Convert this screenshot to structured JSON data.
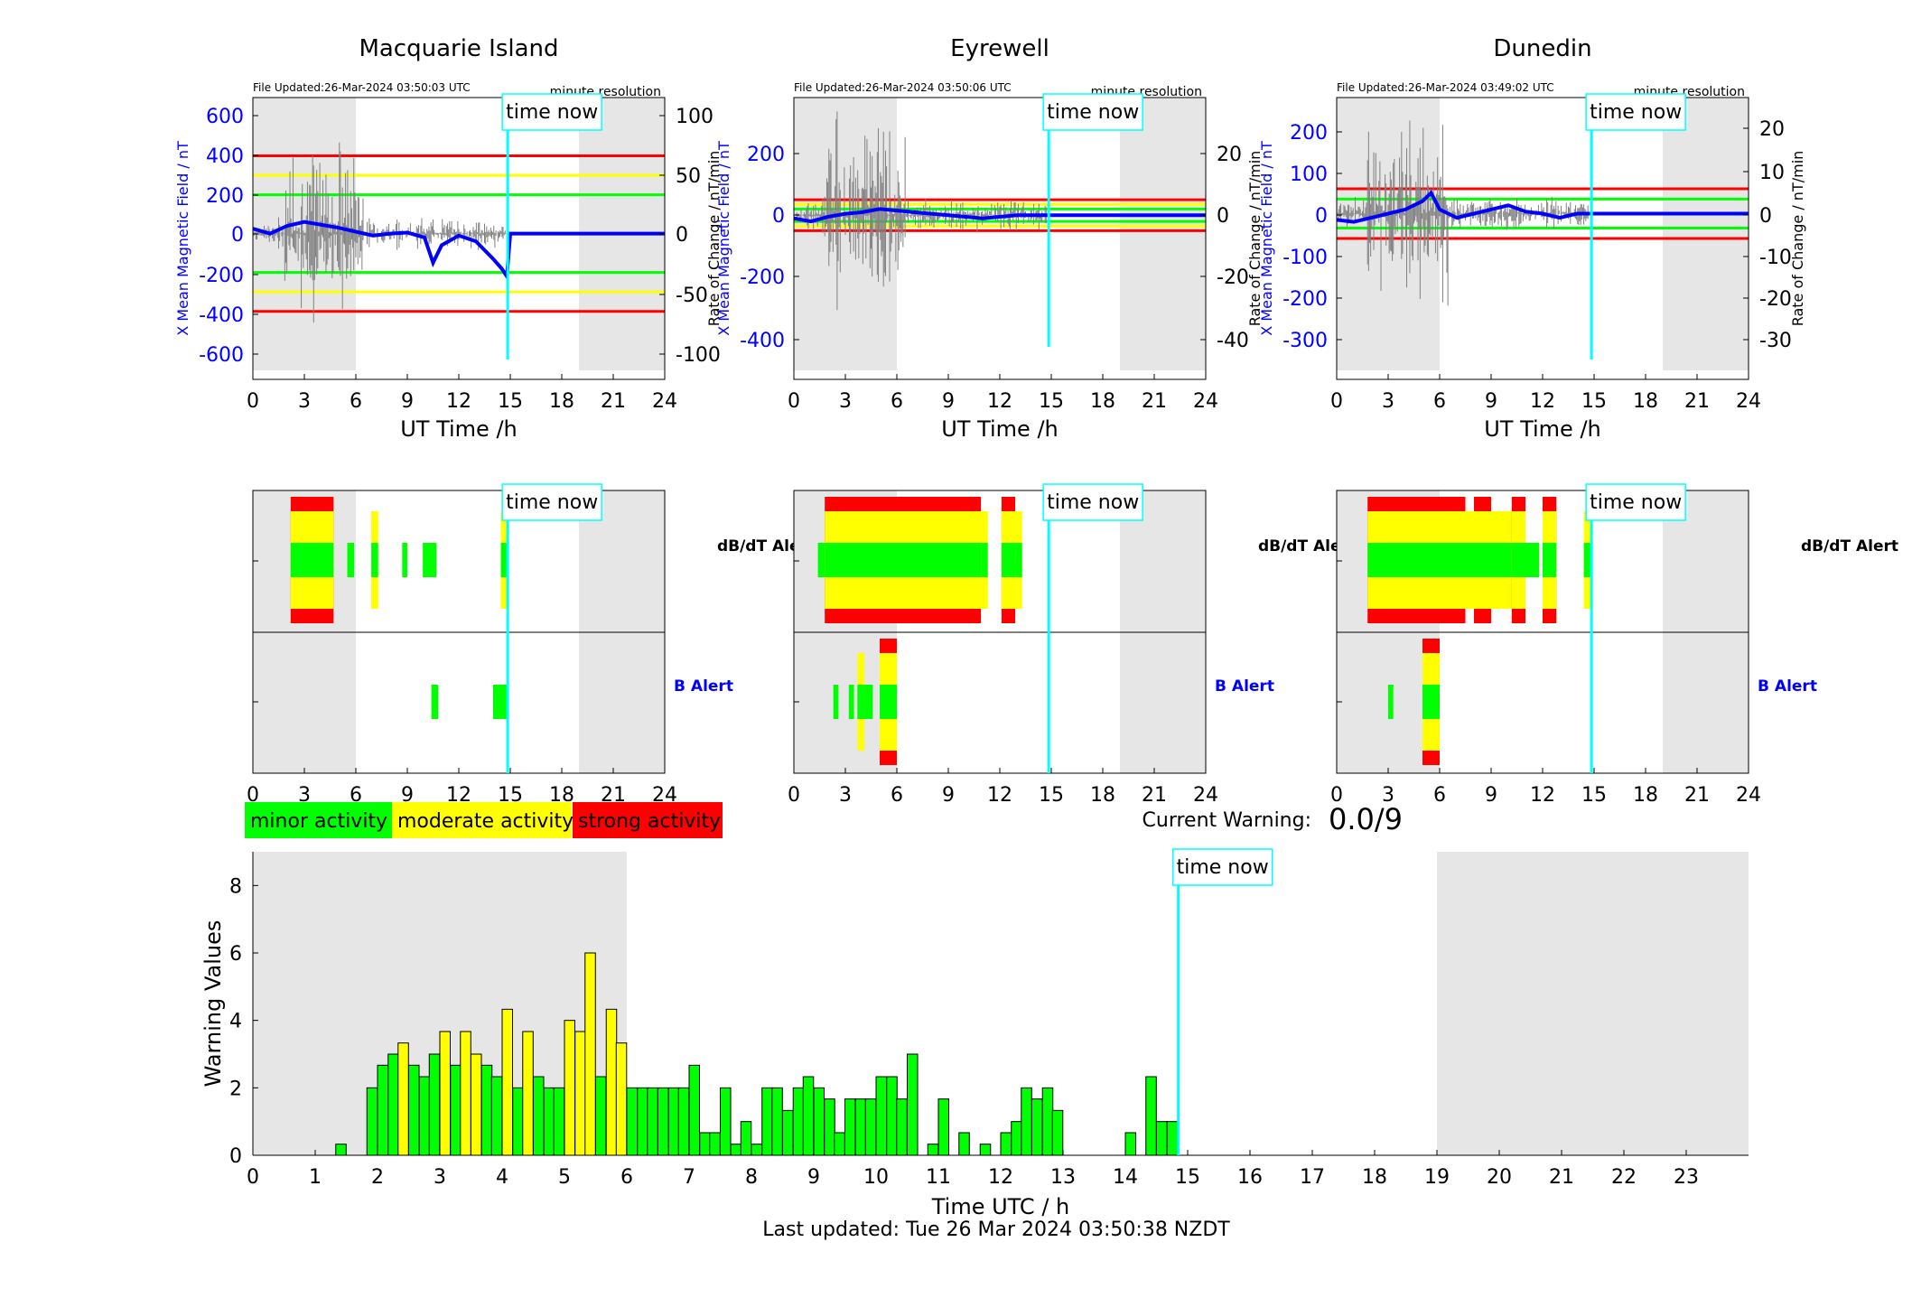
{
  "colors": {
    "minor": "#00ff00",
    "moderate": "#ffff00",
    "strong": "#ff0000",
    "field_trace": "#0000ff",
    "rate_trace": "#808080",
    "time_now": "#00ffff",
    "night_shade": "#e6e6e6",
    "b_alert_label": "#0000ff"
  },
  "stations": [
    {
      "name": "Macquarie Island",
      "file_updated": "File Updated:26-Mar-2024 03:50:03 UTC",
      "resolution": "minute resolution",
      "time_now_label": "time now",
      "ylabel_left": "X Mean Magnetic Field / nT",
      "ylabel_right": "Rate of Change / nT/min",
      "left_ticks": [
        "600",
        "400",
        "200",
        "0",
        "-200",
        "-400",
        "-600"
      ],
      "right_ticks": [
        "100",
        "50",
        "0",
        "-50",
        "-100"
      ],
      "xlabel": "UT Time /h",
      "x_ticks": [
        "0",
        "3",
        "6",
        "9",
        "12",
        "15",
        "18",
        "21",
        "24"
      ]
    },
    {
      "name": "Eyrewell",
      "file_updated": "File Updated:26-Mar-2024 03:50:06 UTC",
      "resolution": "minute resolution",
      "time_now_label": "time now",
      "ylabel_left": "X Mean Magnetic Field / nT",
      "ylabel_right": "Rate of Change / nT/min",
      "left_ticks": [
        "200",
        "0",
        "-200",
        "-400"
      ],
      "right_ticks": [
        "20",
        "0",
        "-20",
        "-40"
      ],
      "xlabel": "UT Time /h",
      "x_ticks": [
        "0",
        "3",
        "6",
        "9",
        "12",
        "15",
        "18",
        "21",
        "24"
      ]
    },
    {
      "name": "Dunedin",
      "file_updated": "File Updated:26-Mar-2024 03:49:02 UTC",
      "resolution": "minute resolution",
      "time_now_label": "time now",
      "ylabel_left": "X Mean Magnetic Field / nT",
      "ylabel_right": "Rate of Change / nT/min",
      "left_ticks": [
        "200",
        "100",
        "0",
        "-100",
        "-200",
        "-300"
      ],
      "right_ticks": [
        "20",
        "10",
        "0",
        "-10",
        "-20",
        "-30"
      ],
      "xlabel": "UT Time /h",
      "x_ticks": [
        "0",
        "3",
        "6",
        "9",
        "12",
        "15",
        "18",
        "21",
        "24"
      ]
    }
  ],
  "alerts": {
    "dbdt_label": "dB/dT Alert",
    "b_label": "B Alert",
    "time_now_label": "time now"
  },
  "legend": {
    "minor": "minor activity",
    "moderate": "moderate activity",
    "strong": "strong activity"
  },
  "current_warning": {
    "label": "Current Warning:",
    "value": "0.0/9"
  },
  "footer": {
    "last_updated": "Last updated: Tue 26 Mar 2024 03:50:38 NZDT"
  },
  "chart_data": [
    {
      "type": "line",
      "station": "Macquarie Island",
      "x_unit": "UT hours",
      "xlim": [
        0,
        24
      ],
      "ylim_field": [
        -750,
        700
      ],
      "ylim_rate": [
        -125,
        116.7
      ],
      "time_now": 14.85,
      "night_shade_hours": [
        [
          0,
          6
        ],
        [
          19,
          24
        ]
      ],
      "field_thresholds": [
        {
          "level": 400,
          "color": "strong"
        },
        {
          "level": 300,
          "color": "moderate"
        },
        {
          "level": 200,
          "color": "minor"
        },
        {
          "level": -200,
          "color": "minor"
        },
        {
          "level": -300,
          "color": "moderate"
        },
        {
          "level": -400,
          "color": "strong"
        }
      ],
      "field_series": {
        "x": [
          0,
          1,
          2,
          3,
          4,
          5,
          6,
          7,
          8,
          9,
          10,
          10.5,
          11,
          12,
          13,
          14,
          14.5,
          14.8,
          15,
          24
        ],
        "y": [
          25,
          0,
          40,
          60,
          45,
          30,
          10,
          -10,
          0,
          5,
          -20,
          -150,
          -60,
          -10,
          -40,
          -130,
          -180,
          -220,
          0,
          0
        ]
      }
    },
    {
      "type": "line",
      "station": "Eyrewell",
      "x_unit": "UT hours",
      "xlim": [
        0,
        24
      ],
      "ylim_field": [
        -530,
        380
      ],
      "ylim_rate": [
        -53,
        38
      ],
      "time_now": 14.85,
      "night_shade_hours": [
        [
          0,
          6
        ],
        [
          19,
          24
        ]
      ],
      "field_thresholds": [
        {
          "level": 50,
          "color": "strong"
        },
        {
          "level": 35,
          "color": "moderate"
        },
        {
          "level": 20,
          "color": "minor"
        },
        {
          "level": -20,
          "color": "minor"
        },
        {
          "level": -35,
          "color": "moderate"
        },
        {
          "level": -50,
          "color": "strong"
        }
      ],
      "field_series": {
        "x": [
          0,
          1,
          2,
          3,
          4,
          5,
          6,
          7,
          8,
          9,
          10,
          11,
          12,
          13,
          24
        ],
        "y": [
          -10,
          -20,
          -5,
          5,
          10,
          20,
          15,
          10,
          5,
          0,
          -5,
          -10,
          -5,
          0,
          0
        ]
      }
    },
    {
      "type": "line",
      "station": "Dunedin",
      "x_unit": "UT hours",
      "xlim": [
        0,
        24
      ],
      "ylim_field": [
        -400,
        280
      ],
      "ylim_rate": [
        -40,
        28
      ],
      "time_now": 14.85,
      "night_shade_hours": [
        [
          0,
          6
        ],
        [
          19,
          24
        ]
      ],
      "field_thresholds": [
        {
          "level": 60,
          "color": "strong"
        },
        {
          "level": 35,
          "color": "minor"
        },
        {
          "level": -35,
          "color": "minor"
        },
        {
          "level": -60,
          "color": "strong"
        }
      ],
      "field_series": {
        "x": [
          0,
          1,
          2,
          3,
          4,
          5,
          5.5,
          6,
          7,
          8,
          9,
          10,
          11,
          12,
          13,
          14,
          24
        ],
        "y": [
          -15,
          -20,
          -10,
          0,
          10,
          30,
          50,
          10,
          -10,
          0,
          10,
          20,
          5,
          0,
          -10,
          0,
          0
        ]
      }
    },
    {
      "type": "bar",
      "title": "",
      "xlabel": "Time UTC / h",
      "ylabel": "Warning Values",
      "xlim": [
        0,
        24
      ],
      "ylim": [
        0,
        9
      ],
      "x_ticks": [
        "0",
        "1",
        "2",
        "3",
        "4",
        "5",
        "6",
        "7",
        "8",
        "9",
        "10",
        "11",
        "12",
        "13",
        "14",
        "15",
        "16",
        "17",
        "18",
        "19",
        "20",
        "21",
        "22",
        "23"
      ],
      "y_ticks": [
        "0",
        "2",
        "4",
        "6",
        "8"
      ],
      "time_now": 14.85,
      "time_now_label": "time now",
      "night_shade_hours": [
        [
          0,
          6
        ],
        [
          19,
          24
        ]
      ],
      "bar_width_hours": 0.1667,
      "bars": [
        {
          "t": 1.33,
          "v": 0.33,
          "c": "minor"
        },
        {
          "t": 1.83,
          "v": 2.0,
          "c": "minor"
        },
        {
          "t": 2.0,
          "v": 2.67,
          "c": "minor"
        },
        {
          "t": 2.17,
          "v": 3.0,
          "c": "minor"
        },
        {
          "t": 2.33,
          "v": 3.33,
          "c": "moderate"
        },
        {
          "t": 2.5,
          "v": 2.67,
          "c": "minor"
        },
        {
          "t": 2.67,
          "v": 2.33,
          "c": "minor"
        },
        {
          "t": 2.83,
          "v": 3.0,
          "c": "minor"
        },
        {
          "t": 3.0,
          "v": 3.67,
          "c": "moderate"
        },
        {
          "t": 3.17,
          "v": 2.67,
          "c": "minor"
        },
        {
          "t": 3.33,
          "v": 3.67,
          "c": "moderate"
        },
        {
          "t": 3.5,
          "v": 3.0,
          "c": "moderate"
        },
        {
          "t": 3.67,
          "v": 2.67,
          "c": "minor"
        },
        {
          "t": 3.83,
          "v": 2.33,
          "c": "minor"
        },
        {
          "t": 4.0,
          "v": 4.33,
          "c": "moderate"
        },
        {
          "t": 4.17,
          "v": 2.0,
          "c": "minor"
        },
        {
          "t": 4.33,
          "v": 3.67,
          "c": "moderate"
        },
        {
          "t": 4.5,
          "v": 2.33,
          "c": "minor"
        },
        {
          "t": 4.67,
          "v": 2.0,
          "c": "minor"
        },
        {
          "t": 4.83,
          "v": 2.0,
          "c": "minor"
        },
        {
          "t": 5.0,
          "v": 4.0,
          "c": "moderate"
        },
        {
          "t": 5.17,
          "v": 3.67,
          "c": "moderate"
        },
        {
          "t": 5.33,
          "v": 6.0,
          "c": "moderate"
        },
        {
          "t": 5.5,
          "v": 2.33,
          "c": "minor"
        },
        {
          "t": 5.67,
          "v": 4.33,
          "c": "moderate"
        },
        {
          "t": 5.83,
          "v": 3.33,
          "c": "moderate"
        },
        {
          "t": 6.0,
          "v": 2.0,
          "c": "minor"
        },
        {
          "t": 6.17,
          "v": 2.0,
          "c": "minor"
        },
        {
          "t": 6.33,
          "v": 2.0,
          "c": "minor"
        },
        {
          "t": 6.5,
          "v": 2.0,
          "c": "minor"
        },
        {
          "t": 6.67,
          "v": 2.0,
          "c": "minor"
        },
        {
          "t": 6.83,
          "v": 2.0,
          "c": "minor"
        },
        {
          "t": 7.0,
          "v": 2.67,
          "c": "minor"
        },
        {
          "t": 7.17,
          "v": 0.67,
          "c": "minor"
        },
        {
          "t": 7.33,
          "v": 0.67,
          "c": "minor"
        },
        {
          "t": 7.5,
          "v": 2.0,
          "c": "minor"
        },
        {
          "t": 7.67,
          "v": 0.33,
          "c": "minor"
        },
        {
          "t": 7.83,
          "v": 1.0,
          "c": "minor"
        },
        {
          "t": 8.0,
          "v": 0.33,
          "c": "minor"
        },
        {
          "t": 8.17,
          "v": 2.0,
          "c": "minor"
        },
        {
          "t": 8.33,
          "v": 2.0,
          "c": "minor"
        },
        {
          "t": 8.5,
          "v": 1.33,
          "c": "minor"
        },
        {
          "t": 8.67,
          "v": 2.0,
          "c": "minor"
        },
        {
          "t": 8.83,
          "v": 2.33,
          "c": "minor"
        },
        {
          "t": 9.0,
          "v": 2.0,
          "c": "minor"
        },
        {
          "t": 9.17,
          "v": 1.67,
          "c": "minor"
        },
        {
          "t": 9.33,
          "v": 0.67,
          "c": "minor"
        },
        {
          "t": 9.5,
          "v": 1.67,
          "c": "minor"
        },
        {
          "t": 9.67,
          "v": 1.67,
          "c": "minor"
        },
        {
          "t": 9.83,
          "v": 1.67,
          "c": "minor"
        },
        {
          "t": 10.0,
          "v": 2.33,
          "c": "minor"
        },
        {
          "t": 10.17,
          "v": 2.33,
          "c": "minor"
        },
        {
          "t": 10.33,
          "v": 1.67,
          "c": "minor"
        },
        {
          "t": 10.5,
          "v": 3.0,
          "c": "minor"
        },
        {
          "t": 10.83,
          "v": 0.33,
          "c": "minor"
        },
        {
          "t": 11.0,
          "v": 1.67,
          "c": "minor"
        },
        {
          "t": 11.33,
          "v": 0.67,
          "c": "minor"
        },
        {
          "t": 11.67,
          "v": 0.33,
          "c": "minor"
        },
        {
          "t": 12.0,
          "v": 0.67,
          "c": "minor"
        },
        {
          "t": 12.17,
          "v": 1.0,
          "c": "minor"
        },
        {
          "t": 12.33,
          "v": 2.0,
          "c": "minor"
        },
        {
          "t": 12.5,
          "v": 1.67,
          "c": "minor"
        },
        {
          "t": 12.67,
          "v": 2.0,
          "c": "minor"
        },
        {
          "t": 12.83,
          "v": 1.33,
          "c": "minor"
        },
        {
          "t": 14.0,
          "v": 0.67,
          "c": "minor"
        },
        {
          "t": 14.33,
          "v": 2.33,
          "c": "minor"
        },
        {
          "t": 14.5,
          "v": 1.0,
          "c": "minor"
        },
        {
          "t": 14.67,
          "v": 1.0,
          "c": "minor"
        }
      ]
    }
  ]
}
